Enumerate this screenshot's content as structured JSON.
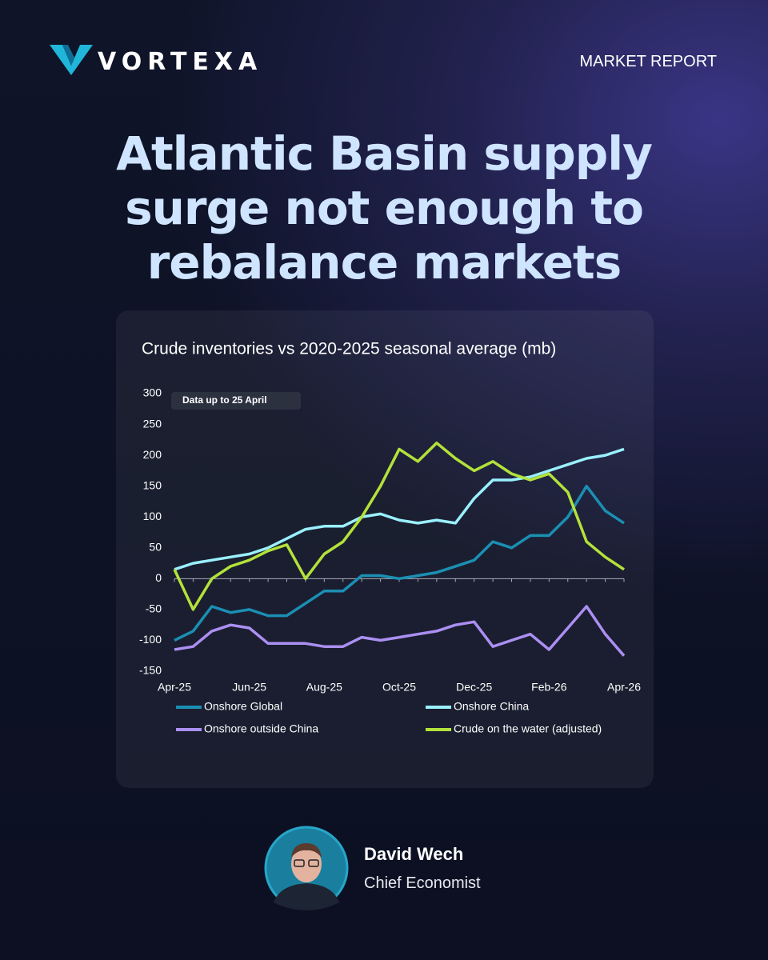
{
  "brand": "VORTEXA",
  "header": {
    "label": "MARKET REPORT"
  },
  "headline": [
    "Atlantic Basin supply",
    "surge not enough to",
    "rebalance markets"
  ],
  "chart_data": {
    "type": "line",
    "title": "Crude inventories vs 2020-2025 seasonal average (mb)",
    "annotation": "Data up to 25 April",
    "categories": [
      "Apr-25",
      null,
      null,
      null,
      "Jun-25",
      null,
      null,
      null,
      "Aug-25",
      null,
      null,
      null,
      "Oct-25",
      null,
      null,
      null,
      "Dec-25",
      null,
      null,
      null,
      "Feb-26",
      null,
      null,
      null,
      "Apr-26"
    ],
    "ylim": [
      -150,
      300
    ],
    "yticks": [
      300,
      250,
      200,
      150,
      100,
      50,
      0,
      -50,
      -100,
      -150
    ],
    "zero_line": true,
    "series": [
      {
        "name": "Onshore Global",
        "color": "#1b8fb3",
        "values": [
          -100,
          -85,
          -45,
          -55,
          -50,
          -60,
          -60,
          -40,
          -20,
          -20,
          5,
          5,
          0,
          5,
          10,
          20,
          30,
          60,
          50,
          70,
          70,
          100,
          150,
          110,
          90
        ]
      },
      {
        "name": "Onshore China",
        "color": "#9af0ff",
        "values": [
          15,
          25,
          30,
          35,
          40,
          50,
          65,
          80,
          85,
          85,
          100,
          105,
          95,
          90,
          95,
          90,
          130,
          160,
          160,
          165,
          175,
          185,
          195,
          200,
          210
        ]
      },
      {
        "name": "Onshore outside China",
        "color": "#ab8ff2",
        "values": [
          -115,
          -110,
          -85,
          -75,
          -80,
          -105,
          -105,
          -105,
          -110,
          -110,
          -95,
          -100,
          -95,
          -90,
          -85,
          -75,
          -70,
          -110,
          -100,
          -90,
          -115,
          -80,
          -45,
          -90,
          -125
        ]
      },
      {
        "name": "Crude on the water (adjusted)",
        "color": "#b3e23a",
        "values": [
          15,
          -50,
          0,
          20,
          30,
          45,
          55,
          0,
          40,
          60,
          100,
          150,
          210,
          190,
          220,
          195,
          175,
          190,
          170,
          160,
          170,
          140,
          60,
          35,
          15
        ]
      }
    ]
  },
  "author": {
    "name": "David Wech",
    "role": "Chief Economist"
  }
}
